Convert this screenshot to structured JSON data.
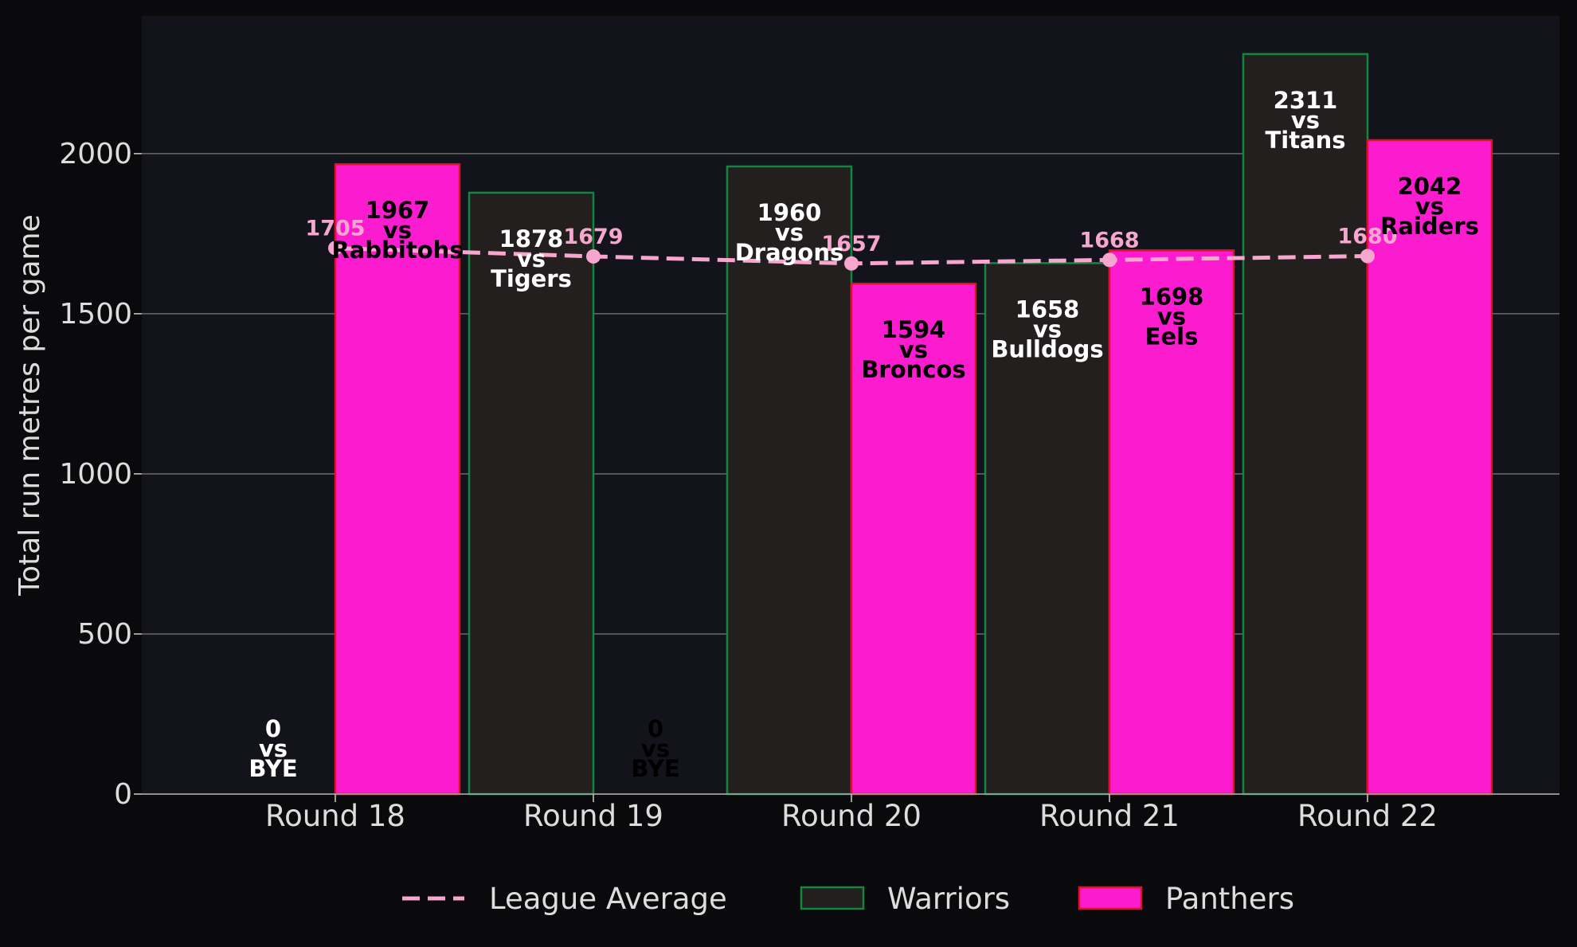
{
  "chart_data": {
    "type": "bar",
    "categories": [
      "Round 18",
      "Round 19",
      "Round 20",
      "Round 21",
      "Round 22"
    ],
    "ylabel": "Total run metres per game",
    "xlabel": "",
    "ylim": [
      0,
      2430
    ],
    "yticks": [
      0,
      500,
      1000,
      1500,
      2000
    ],
    "grid": true,
    "legend_position": "bottom-center",
    "series": [
      {
        "name": "Warriors",
        "kind": "bar",
        "color": "#231f1f",
        "edge_color": "#13853f",
        "label_color": "#ffffff",
        "values": [
          0,
          1878,
          1960,
          1658,
          2311
        ],
        "opponents": [
          "BYE",
          "Tigers",
          "Dragons",
          "Bulldogs",
          "Titans"
        ]
      },
      {
        "name": "Panthers",
        "kind": "bar",
        "color": "#fc1ccf",
        "edge_color": "#e0102a",
        "label_color": "#000000",
        "values": [
          1967,
          0,
          1594,
          1698,
          2042
        ],
        "opponents": [
          "Rabbitohs",
          "BYE",
          "Broncos",
          "Eels",
          "Raiders"
        ]
      },
      {
        "name": "League Average",
        "kind": "line",
        "style": "dashed",
        "color": "#f7a6cf",
        "values": [
          1705,
          1679,
          1657,
          1668,
          1680
        ]
      }
    ],
    "vs_word": "vs"
  }
}
